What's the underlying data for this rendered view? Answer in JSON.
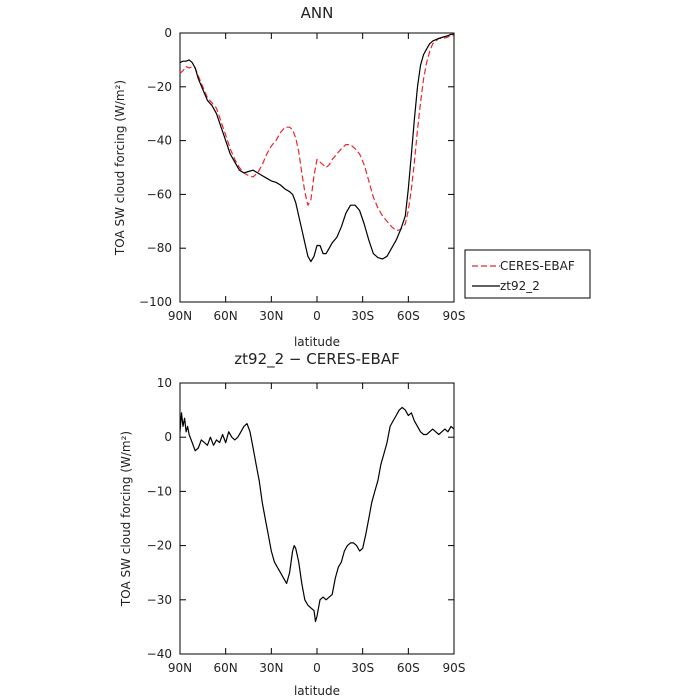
{
  "chart_data": [
    {
      "type": "line",
      "title": "ANN",
      "xlabel": "latitude",
      "ylabel": "TOA SW cloud forcing (W/m²)",
      "x_ticks": [
        90,
        60,
        30,
        0,
        -30,
        -60,
        -90
      ],
      "x_tick_labels": [
        "90N",
        "60N",
        "30N",
        "0",
        "30S",
        "60S",
        "90S"
      ],
      "xlim": [
        90,
        -90
      ],
      "ylim": [
        -100,
        0
      ],
      "y_ticks": [
        0,
        -20,
        -40,
        -60,
        -80,
        -100
      ],
      "y_tick_labels": [
        "0",
        "−20",
        "−40",
        "−60",
        "−80",
        "−100"
      ],
      "legend_position": "right",
      "series": [
        {
          "name": "CERES-EBAF",
          "color": "#e8262b",
          "dash": "dashed",
          "points": [
            [
              90,
              -15
            ],
            [
              88,
              -14
            ],
            [
              86,
              -12.5
            ],
            [
              84,
              -13
            ],
            [
              82,
              -12.5
            ],
            [
              80,
              -13
            ],
            [
              78,
              -16
            ],
            [
              75,
              -20
            ],
            [
              72,
              -24
            ],
            [
              69,
              -26
            ],
            [
              66,
              -28
            ],
            [
              63,
              -33
            ],
            [
              60,
              -38
            ],
            [
              57,
              -43
            ],
            [
              54,
              -47
            ],
            [
              51,
              -50
            ],
            [
              48,
              -52
            ],
            [
              45,
              -53
            ],
            [
              42,
              -53.5
            ],
            [
              39,
              -52
            ],
            [
              36,
              -49
            ],
            [
              33,
              -45
            ],
            [
              30,
              -42
            ],
            [
              27,
              -40
            ],
            [
              24,
              -37
            ],
            [
              21,
              -35
            ],
            [
              18,
              -35
            ],
            [
              16,
              -36
            ],
            [
              14,
              -39
            ],
            [
              12,
              -44
            ],
            [
              10,
              -52
            ],
            [
              8,
              -59
            ],
            [
              6,
              -64
            ],
            [
              4,
              -62
            ],
            [
              2,
              -53
            ],
            [
              0,
              -47
            ],
            [
              -2,
              -48
            ],
            [
              -4,
              -49
            ],
            [
              -6,
              -50
            ],
            [
              -8,
              -49
            ],
            [
              -10,
              -47
            ],
            [
              -13,
              -45
            ],
            [
              -16,
              -43
            ],
            [
              -19,
              -41.5
            ],
            [
              -22,
              -41.5
            ],
            [
              -25,
              -43
            ],
            [
              -28,
              -45
            ],
            [
              -31,
              -49
            ],
            [
              -34,
              -55
            ],
            [
              -37,
              -61
            ],
            [
              -40,
              -65
            ],
            [
              -43,
              -68
            ],
            [
              -46,
              -70
            ],
            [
              -49,
              -72
            ],
            [
              -52,
              -73.5
            ],
            [
              -55,
              -73
            ],
            [
              -58,
              -71
            ],
            [
              -60,
              -66
            ],
            [
              -62,
              -58
            ],
            [
              -64,
              -48
            ],
            [
              -66,
              -36
            ],
            [
              -68,
              -26
            ],
            [
              -70,
              -17
            ],
            [
              -72,
              -11
            ],
            [
              -74,
              -7
            ],
            [
              -76,
              -4
            ],
            [
              -78,
              -3
            ],
            [
              -80,
              -2
            ],
            [
              -83,
              -2
            ],
            [
              -86,
              -1.5
            ],
            [
              -88,
              -1
            ],
            [
              -90,
              -1
            ]
          ]
        },
        {
          "name": "zt92_2",
          "color": "#000000",
          "dash": "solid",
          "points": [
            [
              90,
              -11
            ],
            [
              88,
              -10.5
            ],
            [
              86,
              -10.5
            ],
            [
              84,
              -10
            ],
            [
              82,
              -11
            ],
            [
              80,
              -13
            ],
            [
              78,
              -17
            ],
            [
              75,
              -21
            ],
            [
              72,
              -25
            ],
            [
              69,
              -27
            ],
            [
              66,
              -30
            ],
            [
              63,
              -35
            ],
            [
              60,
              -40
            ],
            [
              57,
              -45
            ],
            [
              54,
              -48
            ],
            [
              51,
              -51
            ],
            [
              48,
              -52
            ],
            [
              45,
              -51.5
            ],
            [
              42,
              -51
            ],
            [
              39,
              -52
            ],
            [
              36,
              -53
            ],
            [
              33,
              -54
            ],
            [
              30,
              -55
            ],
            [
              27,
              -55.5
            ],
            [
              24,
              -56.5
            ],
            [
              21,
              -58
            ],
            [
              18,
              -59
            ],
            [
              16,
              -60
            ],
            [
              14,
              -63
            ],
            [
              12,
              -68
            ],
            [
              10,
              -73
            ],
            [
              8,
              -78
            ],
            [
              6,
              -83
            ],
            [
              4,
              -85
            ],
            [
              2,
              -83
            ],
            [
              0,
              -79
            ],
            [
              -2,
              -79
            ],
            [
              -4,
              -82
            ],
            [
              -6,
              -82
            ],
            [
              -8,
              -80
            ],
            [
              -10,
              -78
            ],
            [
              -13,
              -76
            ],
            [
              -16,
              -72
            ],
            [
              -19,
              -67
            ],
            [
              -22,
              -64
            ],
            [
              -25,
              -64
            ],
            [
              -28,
              -66
            ],
            [
              -31,
              -71
            ],
            [
              -34,
              -77
            ],
            [
              -37,
              -82
            ],
            [
              -40,
              -83.5
            ],
            [
              -43,
              -84
            ],
            [
              -46,
              -83
            ],
            [
              -49,
              -80
            ],
            [
              -52,
              -77
            ],
            [
              -55,
              -73
            ],
            [
              -58,
              -68
            ],
            [
              -60,
              -58
            ],
            [
              -62,
              -45
            ],
            [
              -64,
              -32
            ],
            [
              -66,
              -20
            ],
            [
              -68,
              -12
            ],
            [
              -70,
              -8
            ],
            [
              -72,
              -6
            ],
            [
              -74,
              -4
            ],
            [
              -76,
              -3
            ],
            [
              -78,
              -2.5
            ],
            [
              -80,
              -2
            ],
            [
              -83,
              -1.5
            ],
            [
              -86,
              -1
            ],
            [
              -88,
              -0.5
            ],
            [
              -90,
              -0.5
            ]
          ]
        }
      ]
    },
    {
      "type": "line",
      "title": "zt92_2 − CERES-EBAF",
      "xlabel": "latitude",
      "ylabel": "TOA SW cloud forcing (W/m²)",
      "x_ticks": [
        90,
        60,
        30,
        0,
        -30,
        -60,
        -90
      ],
      "x_tick_labels": [
        "90N",
        "60N",
        "30N",
        "0",
        "30S",
        "60S",
        "90S"
      ],
      "xlim": [
        90,
        -90
      ],
      "ylim": [
        -40,
        10
      ],
      "y_ticks": [
        10,
        0,
        -10,
        -20,
        -30,
        -40
      ],
      "y_tick_labels": [
        "10",
        "0",
        "−10",
        "−20",
        "−30",
        "−40"
      ],
      "series": [
        {
          "color": "#000000",
          "dash": "solid",
          "points": [
            [
              90,
              1
            ],
            [
              89,
              4.5
            ],
            [
              88,
              2
            ],
            [
              87,
              3.5
            ],
            [
              86,
              1
            ],
            [
              85,
              2
            ],
            [
              84,
              0.5
            ],
            [
              82,
              -1
            ],
            [
              80,
              -2.5
            ],
            [
              78,
              -2
            ],
            [
              76,
              -0.5
            ],
            [
              74,
              -1
            ],
            [
              72,
              -1.5
            ],
            [
              70,
              0
            ],
            [
              68,
              -1.5
            ],
            [
              66,
              -0.5
            ],
            [
              64,
              -1
            ],
            [
              62,
              0.5
            ],
            [
              60,
              -1
            ],
            [
              58,
              1
            ],
            [
              56,
              0
            ],
            [
              54,
              -0.5
            ],
            [
              52,
              0
            ],
            [
              50,
              1
            ],
            [
              48,
              2
            ],
            [
              46,
              2.5
            ],
            [
              44,
              1
            ],
            [
              42,
              -2
            ],
            [
              40,
              -5
            ],
            [
              38,
              -8
            ],
            [
              36,
              -12
            ],
            [
              34,
              -15
            ],
            [
              32,
              -18
            ],
            [
              30,
              -21
            ],
            [
              28,
              -23
            ],
            [
              26,
              -24
            ],
            [
              24,
              -25
            ],
            [
              22,
              -26
            ],
            [
              20,
              -27
            ],
            [
              18,
              -25
            ],
            [
              16,
              -21
            ],
            [
              15,
              -20
            ],
            [
              14,
              -20.5
            ],
            [
              12,
              -23
            ],
            [
              10,
              -27
            ],
            [
              8,
              -30
            ],
            [
              6,
              -31
            ],
            [
              4,
              -31.5
            ],
            [
              2,
              -32
            ],
            [
              1,
              -34
            ],
            [
              0,
              -33
            ],
            [
              -2,
              -30
            ],
            [
              -4,
              -29.5
            ],
            [
              -6,
              -30
            ],
            [
              -8,
              -29.5
            ],
            [
              -10,
              -29
            ],
            [
              -12,
              -26
            ],
            [
              -14,
              -24
            ],
            [
              -16,
              -23
            ],
            [
              -18,
              -21
            ],
            [
              -20,
              -20
            ],
            [
              -22,
              -19.5
            ],
            [
              -24,
              -19.5
            ],
            [
              -26,
              -20
            ],
            [
              -28,
              -21
            ],
            [
              -30,
              -20.5
            ],
            [
              -32,
              -18
            ],
            [
              -34,
              -15
            ],
            [
              -36,
              -12
            ],
            [
              -38,
              -10
            ],
            [
              -40,
              -8
            ],
            [
              -42,
              -5
            ],
            [
              -44,
              -3
            ],
            [
              -46,
              -1
            ],
            [
              -48,
              2
            ],
            [
              -50,
              3
            ],
            [
              -52,
              4
            ],
            [
              -54,
              5
            ],
            [
              -56,
              5.5
            ],
            [
              -58,
              5
            ],
            [
              -60,
              4
            ],
            [
              -62,
              4.5
            ],
            [
              -64,
              3
            ],
            [
              -66,
              2
            ],
            [
              -68,
              1
            ],
            [
              -70,
              0.5
            ],
            [
              -72,
              0.5
            ],
            [
              -74,
              1
            ],
            [
              -76,
              1.5
            ],
            [
              -78,
              1
            ],
            [
              -80,
              0.5
            ],
            [
              -82,
              1
            ],
            [
              -84,
              1.5
            ],
            [
              -86,
              1
            ],
            [
              -88,
              2
            ],
            [
              -90,
              1.5
            ]
          ]
        }
      ]
    }
  ]
}
